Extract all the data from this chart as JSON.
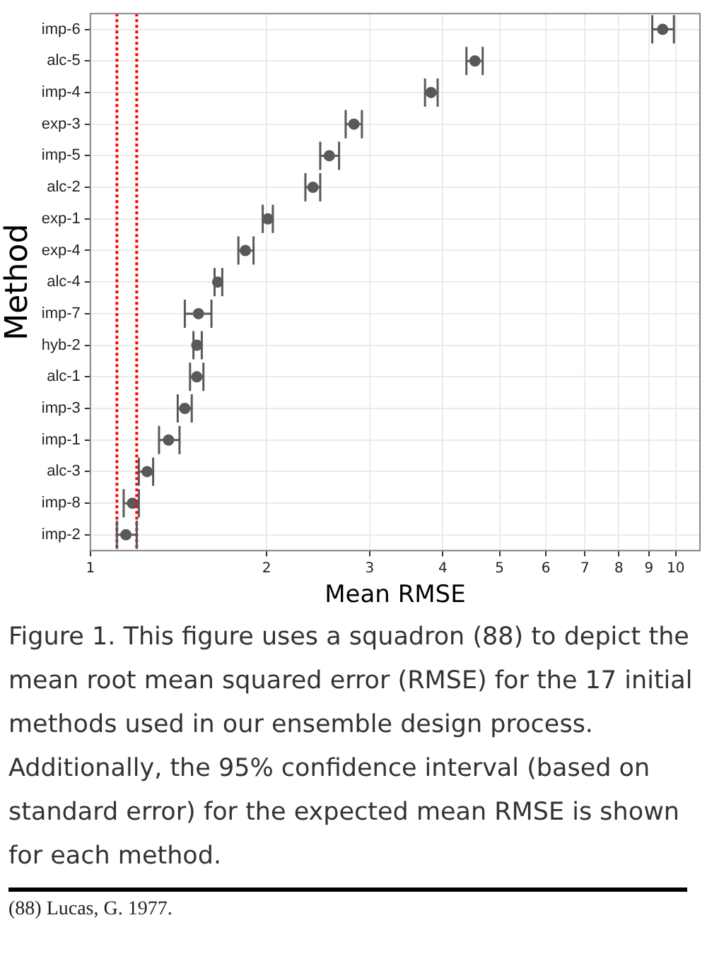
{
  "chart_data": {
    "type": "scatter",
    "xlabel": "Mean RMSE",
    "ylabel": "Method",
    "categories": [
      "imp-6",
      "alc-5",
      "imp-4",
      "exp-3",
      "imp-5",
      "alc-2",
      "exp-1",
      "exp-4",
      "alc-4",
      "imp-7",
      "hyb-2",
      "alc-1",
      "imp-3",
      "imp-1",
      "alc-3",
      "imp-8",
      "imp-2"
    ],
    "values": [
      9.5,
      4.54,
      3.82,
      2.82,
      2.56,
      2.4,
      2.01,
      1.84,
      1.65,
      1.53,
      1.52,
      1.52,
      1.45,
      1.36,
      1.25,
      1.18,
      1.15
    ],
    "errors": [
      [
        9.12,
        9.93
      ],
      [
        4.39,
        4.68
      ],
      [
        3.73,
        3.92
      ],
      [
        2.73,
        2.91
      ],
      [
        2.47,
        2.66
      ],
      [
        2.33,
        2.47
      ],
      [
        1.97,
        2.05
      ],
      [
        1.79,
        1.9
      ],
      [
        1.63,
        1.68
      ],
      [
        1.45,
        1.61
      ],
      [
        1.5,
        1.55
      ],
      [
        1.48,
        1.56
      ],
      [
        1.41,
        1.49
      ],
      [
        1.31,
        1.42
      ],
      [
        1.21,
        1.28
      ],
      [
        1.14,
        1.21
      ],
      [
        1.11,
        1.2
      ]
    ],
    "color": "#595959",
    "marker": "circle",
    "orientation": "horizontal",
    "log": "x",
    "grid": true,
    "xlim": [
      1,
      11
    ],
    "xticks": [
      1,
      2,
      3,
      4,
      5,
      6,
      7,
      8,
      9,
      10
    ],
    "ref_lines": [
      {
        "axis": "x",
        "value": 1.11,
        "color": "#ff0000",
        "line_style": "dotted"
      },
      {
        "axis": "x",
        "value": 1.2,
        "color": "#ff0000",
        "line_style": "dotted"
      }
    ],
    "annotations": [
      "Figure 1. This figure uses a squadron (88) to depict the mean root mean squared error (RMSE) for the 17 initial methods used in our ensemble design process. Additionally, the 95% confidence interval (based on standard error) for the expected mean RMSE is shown for each method.",
      "(88) Lucas, G. 1977."
    ]
  }
}
